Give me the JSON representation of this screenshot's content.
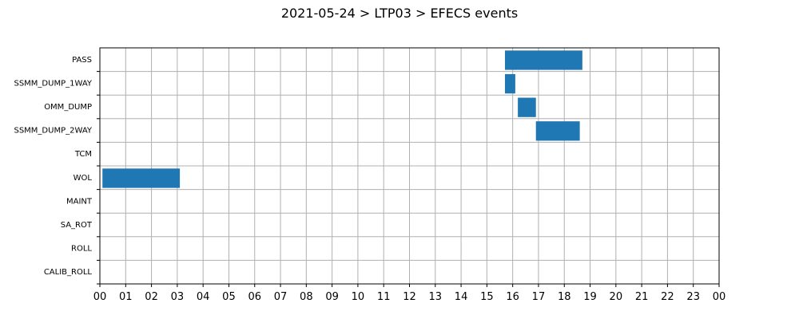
{
  "chart_data": {
    "type": "gantt",
    "title": "2021-05-24 > LTP03 > EFECS events",
    "xlabel": "",
    "ylabel": "",
    "grid": true,
    "xlim": [
      0,
      24
    ],
    "x_tick_labels": [
      "00",
      "01",
      "02",
      "03",
      "04",
      "05",
      "06",
      "07",
      "08",
      "09",
      "10",
      "11",
      "12",
      "13",
      "14",
      "15",
      "16",
      "17",
      "18",
      "19",
      "20",
      "21",
      "22",
      "23",
      "00"
    ],
    "categories": [
      "PASS",
      "SSMM_DUMP_1WAY",
      "OMM_DUMP",
      "SSMM_DUMP_2WAY",
      "TCM",
      "WOL",
      "MAINT",
      "SA_ROT",
      "ROLL",
      "CALIB_ROLL"
    ],
    "bar_color": "#1f77b4",
    "events": [
      {
        "category": "PASS",
        "start": 15.7,
        "end": 18.7
      },
      {
        "category": "SSMM_DUMP_1WAY",
        "start": 15.7,
        "end": 16.1
      },
      {
        "category": "OMM_DUMP",
        "start": 16.2,
        "end": 16.9
      },
      {
        "category": "SSMM_DUMP_2WAY",
        "start": 16.9,
        "end": 18.6
      },
      {
        "category": "WOL",
        "start": 0.1,
        "end": 3.1
      }
    ]
  }
}
